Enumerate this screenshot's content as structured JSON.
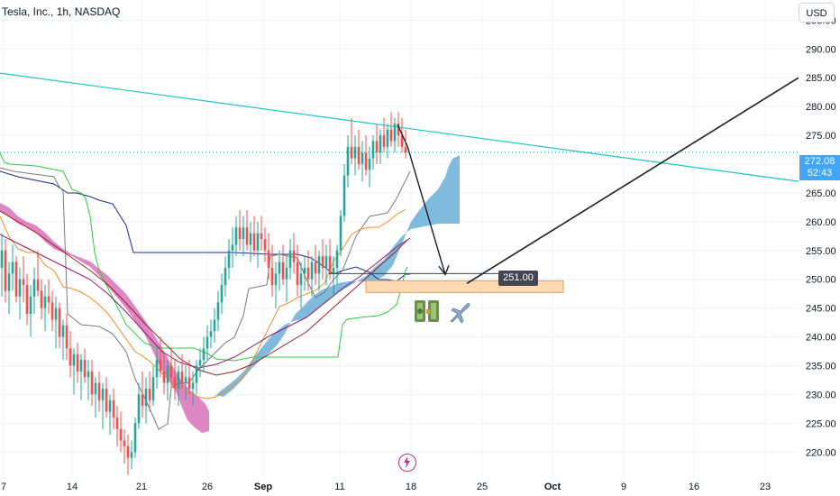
{
  "header": {
    "symbol_title": "Tesla, Inc., 1h, NASDAQ",
    "currency_button": "USD"
  },
  "price_tag": {
    "price": "272.08",
    "countdown": "52:43"
  },
  "target_label": "251.00",
  "colors": {
    "up": "#26a69a",
    "down": "#ef5350",
    "cloud_bull": "#6aaed6",
    "cloud_bear": "#d45fb0",
    "trendline": "#22c3c3",
    "drawn_line": "#1e1e28",
    "box": "#fcd9b0",
    "tenkan": "#1b2a8c",
    "kijun": "#7a7a7a",
    "orange": "#f28c28",
    "green": "#2ecc40",
    "purple": "#8e1b6b"
  },
  "icons": [
    "money-bag-icon",
    "airplane-icon",
    "lightning-icon"
  ],
  "chart_data": {
    "type": "candlestick",
    "title": "Tesla, Inc., 1h, NASDAQ",
    "yaxis": {
      "ticks": [
        220,
        225,
        230,
        235,
        240,
        245,
        250,
        255,
        260,
        265,
        270,
        275,
        280,
        285,
        290,
        295
      ],
      "ylim": [
        215.5,
        298.5
      ]
    },
    "xaxis": {
      "ticks": [
        {
          "label": "7",
          "bold": false
        },
        {
          "label": "14",
          "bold": false
        },
        {
          "label": "21",
          "bold": false
        },
        {
          "label": "26",
          "bold": false
        },
        {
          "label": "Sep",
          "bold": true
        },
        {
          "label": "11",
          "bold": false
        },
        {
          "label": "18",
          "bold": false
        },
        {
          "label": "25",
          "bold": false
        },
        {
          "label": "Oct",
          "bold": true
        },
        {
          "label": "9",
          "bold": false
        },
        {
          "label": "16",
          "bold": false
        },
        {
          "label": "23",
          "bold": false
        }
      ]
    },
    "last_price": 272.08,
    "target": 251.0,
    "trendline": [
      [
        0,
        285.8
      ],
      [
        100,
        267.0
      ]
    ],
    "projection": {
      "from": 251.0,
      "to": 285.0
    }
  }
}
